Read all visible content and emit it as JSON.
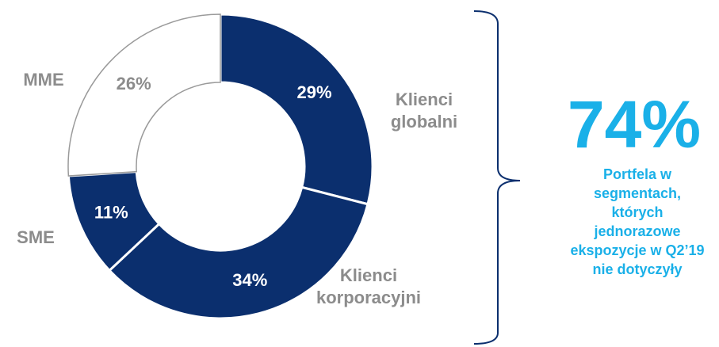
{
  "chart_data": {
    "type": "donut",
    "categories": [
      "Klienci globalni",
      "Klienci korporacyjni",
      "SME",
      "MME"
    ],
    "values": [
      29,
      34,
      11,
      26
    ],
    "value_labels": [
      "29%",
      "34%",
      "11%",
      "26%"
    ],
    "colors": [
      "#0b2f6e",
      "#0b2f6e",
      "#0b2f6e",
      "#ffffff"
    ],
    "annotations": [
      "74%",
      "Portfela w segmentach, których jednorazowe ekspozycje w Q2’19 nie dotyczyły"
    ]
  }
}
